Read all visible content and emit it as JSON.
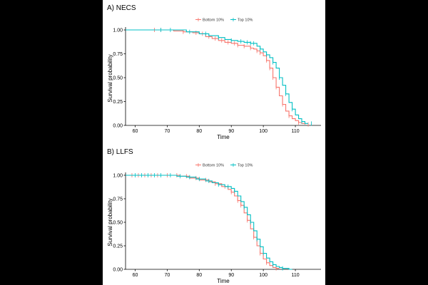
{
  "chart_data": [
    {
      "type": "line",
      "subtype": "kaplan-meier",
      "panel_label": "A) NECS",
      "xlabel": "Time",
      "ylabel": "Survival probability",
      "xlim": [
        57,
        118
      ],
      "ylim": [
        0,
        1.03
      ],
      "xticks": [
        60,
        70,
        80,
        90,
        100,
        110
      ],
      "yticks": [
        0.0,
        0.25,
        0.5,
        0.75,
        1.0
      ],
      "ytick_labels": [
        "0.00",
        "0.25",
        "0.50",
        "0.75",
        "1.00"
      ],
      "legend_position": "top-center",
      "grid": false,
      "series": [
        {
          "name": "Bottom 10%",
          "color": "#F8766D",
          "x": [
            57,
            70,
            72,
            75,
            78,
            80,
            82,
            84,
            86,
            88,
            90,
            92,
            94,
            96,
            97,
            98,
            99,
            100,
            101,
            102,
            103,
            104,
            105,
            106,
            107,
            108,
            109,
            110,
            111,
            112,
            113
          ],
          "y": [
            1.0,
            1.0,
            0.99,
            0.98,
            0.97,
            0.96,
            0.93,
            0.91,
            0.89,
            0.87,
            0.86,
            0.84,
            0.83,
            0.81,
            0.8,
            0.78,
            0.76,
            0.73,
            0.68,
            0.6,
            0.5,
            0.4,
            0.31,
            0.22,
            0.15,
            0.1,
            0.07,
            0.05,
            0.03,
            0.02,
            0.01
          ],
          "censored_x": [
            66,
            68,
            75,
            79,
            81,
            83,
            85,
            87,
            89,
            91,
            92,
            94,
            96,
            98,
            99,
            101,
            102,
            103,
            104,
            106,
            108,
            111,
            114
          ]
        },
        {
          "name": "Top 10%",
          "color": "#00BFC4",
          "x": [
            57,
            72,
            76,
            80,
            83,
            86,
            88,
            90,
            92,
            94,
            96,
            98,
            99,
            100,
            101,
            102,
            103,
            104,
            105,
            106,
            107,
            108,
            109,
            110,
            111,
            112,
            113,
            114
          ],
          "y": [
            1.0,
            1.0,
            0.98,
            0.96,
            0.94,
            0.92,
            0.9,
            0.89,
            0.88,
            0.87,
            0.86,
            0.83,
            0.8,
            0.77,
            0.74,
            0.71,
            0.66,
            0.6,
            0.5,
            0.42,
            0.33,
            0.24,
            0.17,
            0.11,
            0.07,
            0.04,
            0.02,
            0.02
          ],
          "censored_x": [
            68,
            71,
            77,
            82,
            86,
            90,
            93,
            95,
            96,
            97,
            99,
            101,
            103,
            105,
            107,
            109,
            112,
            115
          ]
        }
      ]
    },
    {
      "type": "line",
      "subtype": "kaplan-meier",
      "panel_label": "B) LLFS",
      "xlabel": "Time",
      "ylabel": "Survival probability",
      "xlim": [
        57,
        118
      ],
      "ylim": [
        0,
        1.03
      ],
      "xticks": [
        60,
        70,
        80,
        90,
        100,
        110
      ],
      "yticks": [
        0.0,
        0.25,
        0.5,
        0.75,
        1.0
      ],
      "ytick_labels": [
        "0.00",
        "0.25",
        "0.50",
        "0.75",
        "1.00"
      ],
      "legend_position": "top-center",
      "grid": false,
      "series": [
        {
          "name": "Bottom 10%",
          "color": "#F8766D",
          "x": [
            57,
            70,
            74,
            77,
            80,
            83,
            85,
            87,
            89,
            90,
            91,
            92,
            93,
            94,
            95,
            96,
            97,
            98,
            99,
            100,
            101,
            102,
            103,
            104,
            105
          ],
          "y": [
            1.0,
            1.0,
            0.99,
            0.97,
            0.95,
            0.93,
            0.91,
            0.88,
            0.85,
            0.82,
            0.78,
            0.73,
            0.68,
            0.6,
            0.52,
            0.43,
            0.34,
            0.25,
            0.17,
            0.11,
            0.07,
            0.04,
            0.02,
            0.01,
            0.01
          ],
          "censored_x": [
            59,
            61,
            63,
            65,
            67,
            70,
            73,
            76,
            79,
            82,
            85,
            88,
            90,
            92,
            93,
            95,
            97,
            99,
            101,
            104
          ]
        },
        {
          "name": "Top 10%",
          "color": "#00BFC4",
          "x": [
            57,
            70,
            73,
            76,
            79,
            82,
            84,
            86,
            88,
            90,
            91,
            92,
            93,
            94,
            95,
            96,
            97,
            98,
            99,
            100,
            101,
            102,
            103,
            104,
            105,
            106,
            107,
            108,
            109
          ],
          "y": [
            1.0,
            1.0,
            0.99,
            0.98,
            0.96,
            0.94,
            0.92,
            0.9,
            0.88,
            0.86,
            0.83,
            0.78,
            0.72,
            0.66,
            0.58,
            0.5,
            0.41,
            0.32,
            0.24,
            0.17,
            0.12,
            0.08,
            0.05,
            0.03,
            0.02,
            0.01,
            0.01,
            0.0,
            0.0
          ],
          "censored_x": [
            60,
            62,
            64,
            66,
            68,
            71,
            74,
            77,
            80,
            83,
            86,
            89,
            91,
            94,
            96,
            98,
            100,
            103,
            106
          ]
        }
      ]
    }
  ]
}
